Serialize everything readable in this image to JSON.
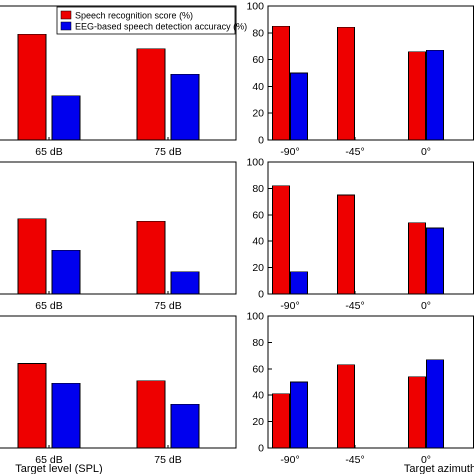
{
  "colors": {
    "speech": "#ee0000",
    "eeg": "#0000ee"
  },
  "legend": {
    "speech_label": "Speech recognition score (%)",
    "eeg_label": "EEG-based speech detection accuracy (%)"
  },
  "chart_data": [
    {
      "type": "bar",
      "row": 0,
      "col": 0,
      "categories": [
        "65 dB",
        "75 dB"
      ],
      "series": [
        {
          "name": "Speech recognition score (%)",
          "values": [
            79,
            68
          ]
        },
        {
          "name": "EEG-based speech detection accuracy (%)",
          "values": [
            33,
            49
          ]
        }
      ],
      "xlabel": "",
      "ylim": [
        0,
        100
      ]
    },
    {
      "type": "bar",
      "row": 0,
      "col": 1,
      "categories": [
        "-90°",
        "-45°",
        "0°"
      ],
      "series": [
        {
          "name": "Speech recognition score (%)",
          "values": [
            85,
            84,
            66
          ]
        },
        {
          "name": "EEG-based speech detection accuracy (%)",
          "values": [
            50,
            null,
            67
          ]
        }
      ],
      "xlabel": "",
      "yticks": [
        "0",
        "20",
        "40",
        "60",
        "80",
        "100"
      ],
      "ylim": [
        0,
        100
      ]
    },
    {
      "type": "bar",
      "row": 1,
      "col": 0,
      "categories": [
        "65 dB",
        "75 dB"
      ],
      "series": [
        {
          "name": "Speech recognition score (%)",
          "values": [
            57,
            55
          ]
        },
        {
          "name": "EEG-based speech detection accuracy (%)",
          "values": [
            33,
            17
          ]
        }
      ],
      "xlabel": "",
      "ylim": [
        0,
        100
      ]
    },
    {
      "type": "bar",
      "row": 1,
      "col": 1,
      "categories": [
        "-90°",
        "-45°",
        "0°"
      ],
      "series": [
        {
          "name": "Speech recognition score (%)",
          "values": [
            82,
            75,
            54
          ]
        },
        {
          "name": "EEG-based speech detection accuracy (%)",
          "values": [
            17,
            null,
            50
          ]
        }
      ],
      "xlabel": "",
      "yticks": [
        "0",
        "20",
        "40",
        "60",
        "80",
        "100"
      ],
      "ylim": [
        0,
        100
      ]
    },
    {
      "type": "bar",
      "row": 2,
      "col": 0,
      "categories": [
        "65 dB",
        "75 dB"
      ],
      "series": [
        {
          "name": "Speech recognition score (%)",
          "values": [
            64,
            51
          ]
        },
        {
          "name": "EEG-based speech detection accuracy (%)",
          "values": [
            49,
            33
          ]
        }
      ],
      "xlabel": "Target level (SPL)",
      "ylim": [
        0,
        100
      ]
    },
    {
      "type": "bar",
      "row": 2,
      "col": 1,
      "categories": [
        "-90°",
        "-45°",
        "0°"
      ],
      "series": [
        {
          "name": "Speech recognition score (%)",
          "values": [
            41,
            63,
            54
          ]
        },
        {
          "name": "EEG-based speech detection accuracy (%)",
          "values": [
            50,
            null,
            67
          ]
        }
      ],
      "xlabel": "Target azimuth",
      "yticks": [
        "0",
        "20",
        "40",
        "60",
        "80",
        "100"
      ],
      "ylim": [
        0,
        100
      ]
    }
  ]
}
